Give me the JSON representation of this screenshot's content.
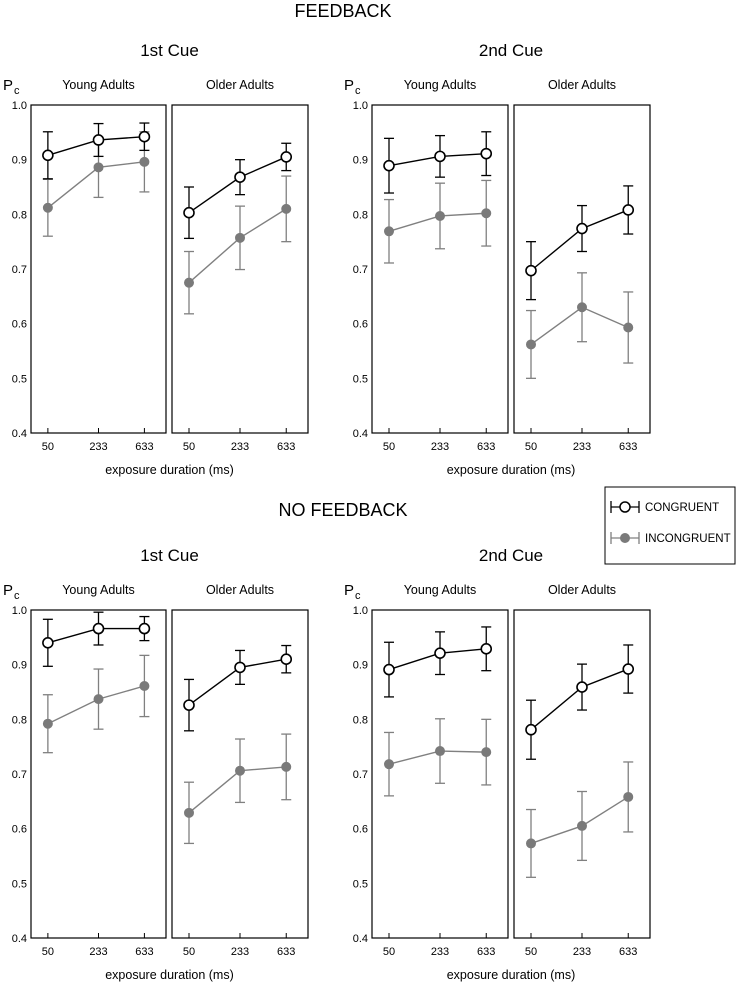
{
  "headings": {
    "feedback": "FEEDBACK",
    "no_feedback": "NO FEEDBACK"
  },
  "legend": {
    "congruent": "CONGRUENT",
    "incongruent": "INCONGRUENT"
  },
  "axis": {
    "ylabel_main": "P",
    "ylabel_sub": "c",
    "xlabel": "exposure duration (ms)"
  },
  "colors": {
    "congruent": "#000000",
    "incongruent": "#808080",
    "incongruent_marker": "#7a7a7a"
  },
  "chart_data": [
    {
      "type": "line",
      "condition": "FEEDBACK",
      "title": "1st Cue",
      "xlabel": "exposure duration (ms)",
      "ylabel": "Pc",
      "ylim": [
        0.4,
        1.0
      ],
      "yticks": [
        "0.4",
        "0.5",
        "0.6",
        "0.7",
        "0.8",
        "0.9",
        "1.0"
      ],
      "categories": [
        "50",
        "233",
        "633"
      ],
      "panels": [
        {
          "name": "Young Adults",
          "series": [
            {
              "name": "CONGRUENT",
              "values": [
                0.908,
                0.936,
                0.942
              ],
              "err": [
                0.043,
                0.03,
                0.025
              ]
            },
            {
              "name": "INCONGRUENT",
              "values": [
                0.812,
                0.886,
                0.896
              ],
              "err": [
                0.052,
                0.055,
                0.055
              ]
            }
          ]
        },
        {
          "name": "Older Adults",
          "series": [
            {
              "name": "CONGRUENT",
              "values": [
                0.803,
                0.868,
                0.905
              ],
              "err": [
                0.047,
                0.032,
                0.025
              ]
            },
            {
              "name": "INCONGRUENT",
              "values": [
                0.675,
                0.757,
                0.81
              ],
              "err": [
                0.057,
                0.058,
                0.06
              ]
            }
          ]
        }
      ]
    },
    {
      "type": "line",
      "condition": "FEEDBACK",
      "title": "2nd Cue",
      "xlabel": "exposure duration (ms)",
      "ylabel": "Pc",
      "ylim": [
        0.4,
        1.0
      ],
      "yticks": [
        "0.4",
        "0.5",
        "0.6",
        "0.7",
        "0.8",
        "0.9",
        "1.0"
      ],
      "categories": [
        "50",
        "233",
        "633"
      ],
      "panels": [
        {
          "name": "Young Adults",
          "series": [
            {
              "name": "CONGRUENT",
              "values": [
                0.889,
                0.906,
                0.911
              ],
              "err": [
                0.05,
                0.038,
                0.04
              ]
            },
            {
              "name": "INCONGRUENT",
              "values": [
                0.769,
                0.797,
                0.802
              ],
              "err": [
                0.058,
                0.06,
                0.06
              ]
            }
          ]
        },
        {
          "name": "Older Adults",
          "series": [
            {
              "name": "CONGRUENT",
              "values": [
                0.697,
                0.774,
                0.808
              ],
              "err": [
                0.053,
                0.042,
                0.044
              ]
            },
            {
              "name": "INCONGRUENT",
              "values": [
                0.562,
                0.63,
                0.593
              ],
              "err": [
                0.062,
                0.063,
                0.065
              ]
            }
          ]
        }
      ]
    },
    {
      "type": "line",
      "condition": "NO FEEDBACK",
      "title": "1st Cue",
      "xlabel": "exposure duration (ms)",
      "ylabel": "Pc",
      "ylim": [
        0.4,
        1.0
      ],
      "yticks": [
        "0.4",
        "0.5",
        "0.6",
        "0.7",
        "0.8",
        "0.9",
        "1.0"
      ],
      "categories": [
        "50",
        "233",
        "633"
      ],
      "panels": [
        {
          "name": "Young Adults",
          "series": [
            {
              "name": "CONGRUENT",
              "values": [
                0.94,
                0.966,
                0.966
              ],
              "err": [
                0.043,
                0.03,
                0.022
              ]
            },
            {
              "name": "INCONGRUENT",
              "values": [
                0.792,
                0.837,
                0.861
              ],
              "err": [
                0.053,
                0.055,
                0.056
              ]
            }
          ]
        },
        {
          "name": "Older Adults",
          "series": [
            {
              "name": "CONGRUENT",
              "values": [
                0.826,
                0.895,
                0.91
              ],
              "err": [
                0.047,
                0.031,
                0.025
              ]
            },
            {
              "name": "INCONGRUENT",
              "values": [
                0.629,
                0.706,
                0.713
              ],
              "err": [
                0.056,
                0.058,
                0.06
              ]
            }
          ]
        }
      ]
    },
    {
      "type": "line",
      "condition": "NO FEEDBACK",
      "title": "2nd Cue",
      "xlabel": "exposure duration (ms)",
      "ylabel": "Pc",
      "ylim": [
        0.4,
        1.0
      ],
      "yticks": [
        "0.4",
        "0.5",
        "0.6",
        "0.7",
        "0.8",
        "0.9",
        "1.0"
      ],
      "categories": [
        "50",
        "233",
        "633"
      ],
      "panels": [
        {
          "name": "Young Adults",
          "series": [
            {
              "name": "CONGRUENT",
              "values": [
                0.891,
                0.921,
                0.929
              ],
              "err": [
                0.05,
                0.039,
                0.04
              ]
            },
            {
              "name": "INCONGRUENT",
              "values": [
                0.718,
                0.742,
                0.74
              ],
              "err": [
                0.058,
                0.059,
                0.06
              ]
            }
          ]
        },
        {
          "name": "Older Adults",
          "series": [
            {
              "name": "CONGRUENT",
              "values": [
                0.781,
                0.859,
                0.892
              ],
              "err": [
                0.054,
                0.042,
                0.044
              ]
            },
            {
              "name": "INCONGRUENT",
              "values": [
                0.573,
                0.605,
                0.658
              ],
              "err": [
                0.062,
                0.063,
                0.064
              ]
            }
          ]
        }
      ]
    }
  ]
}
